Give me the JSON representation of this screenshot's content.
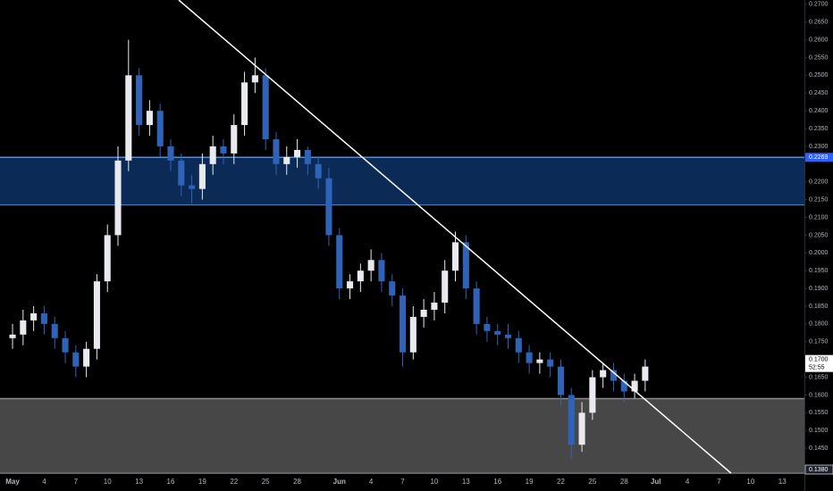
{
  "chart_data": {
    "type": "candlestick",
    "x": [
      0,
      1,
      2,
      3,
      4,
      5,
      6,
      7,
      8,
      9,
      10,
      11,
      12,
      13,
      14,
      15,
      16,
      17,
      18,
      19,
      20,
      21,
      22,
      23,
      24,
      25,
      26,
      27,
      28,
      29,
      30,
      31,
      32,
      33,
      34,
      35,
      36,
      37,
      38,
      39,
      40,
      41,
      42,
      43,
      44,
      45,
      46,
      47,
      48,
      49,
      50,
      51,
      52,
      53,
      54,
      55,
      56,
      57,
      58,
      59,
      60
    ],
    "open": [
      0.176,
      0.177,
      0.181,
      0.183,
      0.18,
      0.176,
      0.172,
      0.168,
      0.173,
      0.192,
      0.205,
      0.226,
      0.25,
      0.236,
      0.24,
      0.23,
      0.226,
      0.219,
      0.218,
      0.225,
      0.23,
      0.228,
      0.236,
      0.248,
      0.25,
      0.232,
      0.225,
      0.227,
      0.229,
      0.225,
      0.221,
      0.205,
      0.19,
      0.192,
      0.195,
      0.198,
      0.192,
      0.188,
      0.172,
      0.182,
      0.184,
      0.186,
      0.195,
      0.203,
      0.19,
      0.18,
      0.178,
      0.177,
      0.176,
      0.172,
      0.169,
      0.17,
      0.168,
      0.16,
      0.146,
      0.155,
      0.165,
      0.167,
      0.164,
      0.161,
      0.164
    ],
    "high": [
      0.18,
      0.184,
      0.185,
      0.185,
      0.182,
      0.178,
      0.174,
      0.175,
      0.194,
      0.208,
      0.23,
      0.26,
      0.252,
      0.243,
      0.242,
      0.232,
      0.228,
      0.222,
      0.228,
      0.233,
      0.232,
      0.239,
      0.251,
      0.255,
      0.252,
      0.234,
      0.23,
      0.232,
      0.23,
      0.227,
      0.224,
      0.207,
      0.194,
      0.197,
      0.201,
      0.2,
      0.194,
      0.19,
      0.185,
      0.187,
      0.189,
      0.198,
      0.206,
      0.205,
      0.192,
      0.182,
      0.18,
      0.18,
      0.178,
      0.174,
      0.172,
      0.172,
      0.17,
      0.162,
      0.158,
      0.167,
      0.169,
      0.169,
      0.166,
      0.166,
      0.17
    ],
    "low": [
      0.173,
      0.174,
      0.178,
      0.177,
      0.173,
      0.169,
      0.165,
      0.165,
      0.17,
      0.189,
      0.202,
      0.223,
      0.233,
      0.233,
      0.227,
      0.223,
      0.216,
      0.214,
      0.215,
      0.222,
      0.225,
      0.225,
      0.233,
      0.245,
      0.229,
      0.222,
      0.222,
      0.224,
      0.222,
      0.218,
      0.202,
      0.187,
      0.187,
      0.189,
      0.192,
      0.189,
      0.185,
      0.168,
      0.17,
      0.179,
      0.181,
      0.183,
      0.192,
      0.187,
      0.177,
      0.175,
      0.174,
      0.173,
      0.169,
      0.166,
      0.166,
      0.165,
      0.157,
      0.142,
      0.144,
      0.153,
      0.162,
      0.161,
      0.158,
      0.159,
      0.161
    ],
    "close": [
      0.177,
      0.181,
      0.183,
      0.18,
      0.176,
      0.172,
      0.168,
      0.173,
      0.192,
      0.205,
      0.226,
      0.25,
      0.236,
      0.24,
      0.23,
      0.226,
      0.219,
      0.218,
      0.225,
      0.23,
      0.228,
      0.236,
      0.248,
      0.25,
      0.232,
      0.225,
      0.227,
      0.229,
      0.225,
      0.221,
      0.205,
      0.19,
      0.192,
      0.195,
      0.198,
      0.192,
      0.188,
      0.172,
      0.182,
      0.184,
      0.186,
      0.195,
      0.203,
      0.19,
      0.18,
      0.178,
      0.177,
      0.176,
      0.172,
      0.169,
      0.17,
      0.168,
      0.16,
      0.146,
      0.155,
      0.165,
      0.167,
      0.164,
      0.161,
      0.164,
      0.168
    ],
    "up_color": "#e8eaf0",
    "down_color": "#2f63b8",
    "xlim": [
      -1.19,
      75.1
    ],
    "xticks": [
      {
        "value": 0,
        "label": "May"
      },
      {
        "value": 3,
        "label": "4"
      },
      {
        "value": 6,
        "label": "7"
      },
      {
        "value": 9,
        "label": "10"
      },
      {
        "value": 12,
        "label": "13"
      },
      {
        "value": 15,
        "label": "16"
      },
      {
        "value": 18,
        "label": "19"
      },
      {
        "value": 21,
        "label": "22"
      },
      {
        "value": 24,
        "label": "25"
      },
      {
        "value": 27,
        "label": "28"
      },
      {
        "value": 31,
        "label": "Jun"
      },
      {
        "value": 34,
        "label": "4"
      },
      {
        "value": 37,
        "label": "7"
      },
      {
        "value": 40,
        "label": "10"
      },
      {
        "value": 43,
        "label": "13"
      },
      {
        "value": 46,
        "label": "16"
      },
      {
        "value": 49,
        "label": "19"
      },
      {
        "value": 52,
        "label": "22"
      },
      {
        "value": 55,
        "label": "25"
      },
      {
        "value": 58,
        "label": "28"
      },
      {
        "value": 61,
        "label": "Jul"
      },
      {
        "value": 64,
        "label": "4"
      },
      {
        "value": 67,
        "label": "7"
      },
      {
        "value": 70,
        "label": "10"
      },
      {
        "value": 73,
        "label": "13"
      }
    ],
    "ylim": [
      0.138,
      0.2712
    ],
    "yticks": [
      {
        "value": 0.145,
        "label": "0.1450"
      },
      {
        "value": 0.15,
        "label": "0.1500"
      },
      {
        "value": 0.155,
        "label": "0.1550"
      },
      {
        "value": 0.16,
        "label": "0.1600"
      },
      {
        "value": 0.165,
        "label": "0.1650"
      },
      {
        "value": 0.175,
        "label": "0.1750"
      },
      {
        "value": 0.18,
        "label": "0.1800"
      },
      {
        "value": 0.185,
        "label": "0.1850"
      },
      {
        "value": 0.19,
        "label": "0.1900"
      },
      {
        "value": 0.195,
        "label": "0.1950"
      },
      {
        "value": 0.2,
        "label": "0.2000"
      },
      {
        "value": 0.205,
        "label": "0.2050"
      },
      {
        "value": 0.21,
        "label": "0.2100"
      },
      {
        "value": 0.215,
        "label": "0.2150"
      },
      {
        "value": 0.22,
        "label": "0.2200"
      },
      {
        "value": 0.23,
        "label": "0.2300"
      },
      {
        "value": 0.235,
        "label": "0.2350"
      },
      {
        "value": 0.24,
        "label": "0.2400"
      },
      {
        "value": 0.245,
        "label": "0.2450"
      },
      {
        "value": 0.25,
        "label": "0.2500"
      },
      {
        "value": 0.255,
        "label": "0.2550"
      },
      {
        "value": 0.26,
        "label": "0.2600"
      },
      {
        "value": 0.265,
        "label": "0.2650"
      },
      {
        "value": 0.27,
        "label": "0.2700"
      }
    ],
    "zones": [
      {
        "ylim": [
          0.2135,
          0.2269
        ],
        "color": "#0b2a55",
        "edge": "#4d8fe0"
      },
      {
        "ylim": [
          0.138,
          0.159
        ],
        "color": "#474747",
        "edge": "#8a8a8a"
      }
    ],
    "trendline": {
      "x": [
        15.76,
        68.14
      ],
      "y": [
        0.2712,
        0.138
      ],
      "color": "#ffffff"
    },
    "zone_label": {
      "value": 0.2269,
      "label": "0.2269"
    },
    "last_price": {
      "value": 0.17,
      "label": "0.1700",
      "countdown": "52:55"
    },
    "bottom_label": {
      "value": 0.138,
      "label": "0.1380"
    }
  }
}
